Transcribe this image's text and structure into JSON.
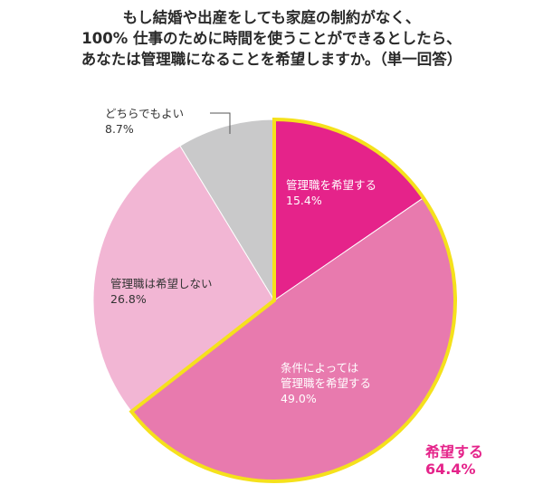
{
  "chart_data": {
    "type": "pie",
    "title_lines": [
      "もし結婚や出産をしても家庭の制約がなく、",
      "100% 仕事のために時間を使うことができるとしたら、",
      "あなたは管理職になることを希望しますか。（単一回答）"
    ],
    "slices": [
      {
        "label_lines": [
          "管理職を希望する"
        ],
        "value": 15.4,
        "value_label": "15.4%",
        "color": "#e5238a",
        "text_color": "#ffffff"
      },
      {
        "label_lines": [
          "条件によっては",
          "管理職を希望する"
        ],
        "value": 49.0,
        "value_label": "49.0%",
        "color": "#e87aae",
        "text_color": "#ffffff"
      },
      {
        "label_lines": [
          "管理職は希望しない"
        ],
        "value": 26.8,
        "value_label": "26.8%",
        "color": "#f2b6d4",
        "text_color": "#333333"
      },
      {
        "label_lines": [
          "どちらでもよい"
        ],
        "value": 8.7,
        "value_label": "8.7%",
        "color": "#c9c9ca",
        "text_color": "#333333"
      }
    ],
    "group_annotation": {
      "label": "希望する",
      "value": 64.4,
      "value_label": "64.4%",
      "outline_color": "#f5e11c",
      "text_color": "#e5238a"
    },
    "start": "top",
    "direction": "clockwise"
  }
}
